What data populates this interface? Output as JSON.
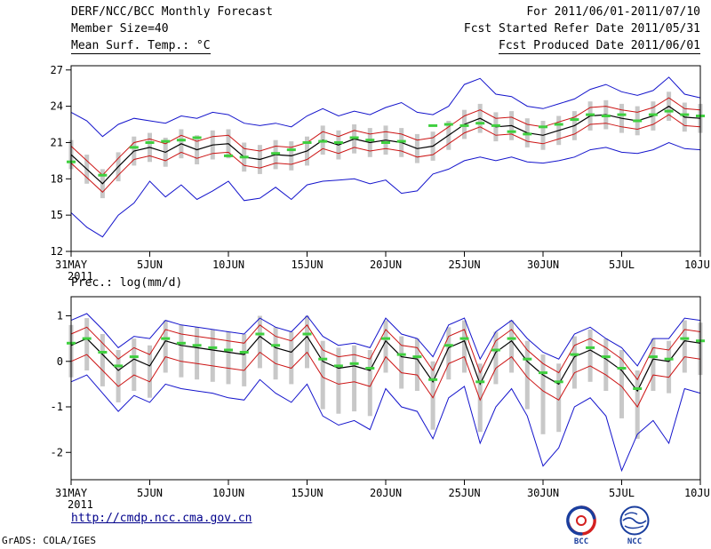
{
  "header": {
    "left": [
      "DERF/NCC/BCC Monthly Forecast",
      "Member Size=40",
      "Mean Surf. Temp.: °C"
    ],
    "right": [
      "For 2011/06/01-2011/07/10",
      "Fcst Started Refer Date 2011/05/31",
      "Fcst Produced Date 2011/06/01"
    ]
  },
  "footer": {
    "url": "http://cmdp.ncc.cma.gov.cn",
    "credit": "GrADS: COLA/IGES",
    "logos": [
      {
        "label": "BCC"
      },
      {
        "label": "NCC"
      }
    ]
  },
  "colors": {
    "extreme_line": "#1414cc",
    "quartile_line": "#cc1414",
    "mean_line": "#000000",
    "obs_dash": "#3fcf3f",
    "spread_bar": "#c8c8c8",
    "frame": "#000000",
    "url_text": "#00008b"
  },
  "chart_data": [
    {
      "type": "line",
      "title": "Mean Surf. Temp.: °C",
      "ylabel": "",
      "xlabel": "",
      "year_label": "2011",
      "n_days": 41,
      "x_tick_days": [
        0,
        5,
        10,
        15,
        20,
        25,
        30,
        35,
        40
      ],
      "x_tick_labels": [
        "31MAY",
        "5JUN",
        "10JUN",
        "15JUN",
        "20JUN",
        "25JUN",
        "30JUN",
        "5JUL",
        "10JUL"
      ],
      "ylim": [
        12,
        27.35
      ],
      "y_ticks": [
        12,
        15,
        18,
        21,
        24,
        27
      ],
      "grid": false,
      "legend": "none",
      "series": [
        {
          "name": "ensemble-max",
          "color": "#1414cc",
          "width": 1,
          "values": [
            23.5,
            22.8,
            21.5,
            22.5,
            23.0,
            22.8,
            22.6,
            23.2,
            23.0,
            23.5,
            23.3,
            22.6,
            22.4,
            22.6,
            22.3,
            23.2,
            23.8,
            23.2,
            23.6,
            23.3,
            23.9,
            24.3,
            23.5,
            23.3,
            24.0,
            25.8,
            26.3,
            25.0,
            24.8,
            24.0,
            23.8,
            24.2,
            24.6,
            25.4,
            25.8,
            25.2,
            24.9,
            25.3,
            26.4,
            25.0,
            24.7
          ]
        },
        {
          "name": "upper-quartile",
          "color": "#cc1414",
          "width": 1,
          "values": [
            20.7,
            19.5,
            18.3,
            19.7,
            21.0,
            21.3,
            20.9,
            21.6,
            21.1,
            21.5,
            21.6,
            20.5,
            20.3,
            20.7,
            20.6,
            21.0,
            21.9,
            21.5,
            22.0,
            21.7,
            21.9,
            21.7,
            21.2,
            21.4,
            22.3,
            23.2,
            23.7,
            23.0,
            23.1,
            22.5,
            22.3,
            22.7,
            23.1,
            23.9,
            24.0,
            23.7,
            23.5,
            23.9,
            24.7,
            23.8,
            23.7
          ]
        },
        {
          "name": "ensemble-mean",
          "color": "#000000",
          "width": 1.2,
          "values": [
            20.0,
            18.8,
            17.6,
            19.0,
            20.3,
            20.6,
            20.2,
            20.9,
            20.4,
            20.8,
            20.9,
            19.8,
            19.6,
            20.0,
            19.9,
            20.3,
            21.2,
            20.8,
            21.3,
            21.0,
            21.2,
            21.0,
            20.5,
            20.7,
            21.6,
            22.5,
            23.0,
            22.3,
            22.4,
            21.8,
            21.6,
            22.0,
            22.4,
            23.2,
            23.3,
            23.0,
            22.8,
            23.2,
            24.0,
            23.1,
            23.0
          ]
        },
        {
          "name": "lower-quartile",
          "color": "#cc1414",
          "width": 1,
          "values": [
            19.3,
            18.1,
            16.9,
            18.3,
            19.6,
            19.9,
            19.5,
            20.2,
            19.7,
            20.1,
            20.2,
            19.1,
            18.9,
            19.3,
            19.2,
            19.6,
            20.5,
            20.1,
            20.6,
            20.3,
            20.5,
            20.3,
            19.8,
            20.0,
            20.9,
            21.8,
            22.3,
            21.6,
            21.7,
            21.1,
            20.9,
            21.3,
            21.7,
            22.5,
            22.6,
            22.3,
            22.1,
            22.5,
            23.3,
            22.4,
            22.3
          ]
        },
        {
          "name": "ensemble-min",
          "color": "#1414cc",
          "width": 1,
          "values": [
            15.2,
            14.0,
            13.2,
            15.0,
            16.0,
            17.8,
            16.5,
            17.5,
            16.3,
            17.0,
            17.8,
            16.2,
            16.4,
            17.3,
            16.3,
            17.5,
            17.8,
            17.9,
            18.0,
            17.6,
            17.9,
            16.8,
            17.0,
            18.4,
            18.8,
            19.5,
            19.8,
            19.5,
            19.8,
            19.4,
            19.3,
            19.5,
            19.8,
            20.4,
            20.6,
            20.2,
            20.1,
            20.4,
            21.0,
            20.5,
            20.4
          ]
        }
      ],
      "bars": {
        "name": "ensemble-spread",
        "color": "#c8c8c8",
        "high": [
          21.2,
          20.0,
          18.8,
          20.2,
          21.5,
          21.8,
          21.4,
          22.1,
          21.6,
          22.0,
          22.1,
          21.0,
          20.8,
          21.2,
          21.1,
          21.5,
          22.4,
          22.0,
          22.5,
          22.2,
          22.4,
          22.2,
          21.7,
          21.9,
          22.8,
          23.7,
          24.2,
          23.5,
          23.6,
          23.0,
          22.8,
          23.2,
          23.6,
          24.4,
          24.5,
          24.2,
          24.0,
          24.4,
          25.2,
          24.3,
          24.2
        ],
        "low": [
          18.8,
          17.6,
          16.4,
          17.8,
          19.1,
          19.4,
          19.0,
          19.7,
          19.2,
          19.6,
          19.7,
          18.6,
          18.4,
          18.8,
          18.7,
          19.1,
          20.0,
          19.6,
          20.1,
          19.8,
          20.0,
          19.8,
          19.3,
          19.5,
          20.4,
          21.3,
          21.8,
          21.1,
          21.2,
          20.6,
          20.4,
          20.8,
          21.2,
          22.0,
          22.1,
          21.8,
          21.6,
          22.0,
          22.8,
          21.9,
          21.8
        ]
      },
      "dashes": {
        "name": "observation-dashes",
        "color": "#3fcf3f",
        "values": [
          19.4,
          null,
          18.3,
          null,
          20.6,
          21.0,
          21.1,
          21.2,
          21.4,
          null,
          19.9,
          19.8,
          null,
          20.1,
          20.4,
          21.0,
          21.1,
          21.0,
          21.4,
          21.2,
          21.0,
          21.1,
          null,
          22.4,
          22.5,
          22.4,
          22.6,
          22.4,
          21.9,
          21.7,
          22.3,
          22.5,
          22.9,
          23.3,
          23.2,
          23.3,
          22.8,
          23.3,
          23.6,
          23.3,
          23.2
        ]
      }
    },
    {
      "type": "line",
      "title": "Prec.: log(mm/d)",
      "ylabel": "",
      "xlabel": "",
      "year_label": "2011",
      "n_days": 41,
      "x_tick_days": [
        0,
        5,
        10,
        15,
        20,
        25,
        30,
        35,
        40
      ],
      "x_tick_labels": [
        "31MAY",
        "5JUN",
        "10JUN",
        "15JUN",
        "20JUN",
        "25JUN",
        "30JUN",
        "5JUL",
        "10JUL"
      ],
      "ylim": [
        -2.6,
        1.42
      ],
      "y_ticks": [
        1,
        0,
        -1,
        -2
      ],
      "grid": false,
      "legend": "none",
      "series": [
        {
          "name": "ensemble-max",
          "color": "#1414cc",
          "width": 1,
          "values": [
            0.9,
            1.05,
            0.7,
            0.3,
            0.55,
            0.5,
            0.9,
            0.8,
            0.75,
            0.7,
            0.65,
            0.6,
            0.95,
            0.75,
            0.65,
            1.0,
            0.55,
            0.35,
            0.4,
            0.3,
            0.95,
            0.6,
            0.5,
            0.1,
            0.8,
            0.95,
            0.05,
            0.65,
            0.9,
            0.5,
            0.2,
            0.05,
            0.6,
            0.75,
            0.5,
            0.3,
            -0.1,
            0.5,
            0.5,
            0.95,
            0.9
          ]
        },
        {
          "name": "upper-quartile",
          "color": "#cc1414",
          "width": 1,
          "values": [
            0.6,
            0.75,
            0.4,
            0.05,
            0.3,
            0.15,
            0.7,
            0.6,
            0.55,
            0.5,
            0.45,
            0.4,
            0.8,
            0.55,
            0.45,
            0.8,
            0.25,
            0.1,
            0.15,
            0.05,
            0.7,
            0.35,
            0.3,
            -0.2,
            0.55,
            0.7,
            -0.25,
            0.45,
            0.7,
            0.25,
            -0.05,
            -0.25,
            0.35,
            0.5,
            0.3,
            0.05,
            -0.4,
            0.3,
            0.25,
            0.7,
            0.65
          ]
        },
        {
          "name": "ensemble-mean",
          "color": "#000000",
          "width": 1.2,
          "values": [
            0.35,
            0.5,
            0.15,
            -0.2,
            0.05,
            -0.1,
            0.45,
            0.35,
            0.3,
            0.25,
            0.2,
            0.15,
            0.55,
            0.3,
            0.2,
            0.55,
            0.0,
            -0.15,
            -0.1,
            -0.2,
            0.45,
            0.1,
            0.05,
            -0.45,
            0.3,
            0.45,
            -0.5,
            0.2,
            0.45,
            0.0,
            -0.3,
            -0.5,
            0.1,
            0.25,
            0.05,
            -0.2,
            -0.65,
            0.05,
            0.0,
            0.45,
            0.4
          ]
        },
        {
          "name": "lower-quartile",
          "color": "#cc1414",
          "width": 1,
          "values": [
            0.0,
            0.15,
            -0.2,
            -0.55,
            -0.3,
            -0.45,
            0.1,
            0.0,
            -0.05,
            -0.1,
            -0.15,
            -0.2,
            0.2,
            -0.05,
            -0.15,
            0.2,
            -0.35,
            -0.5,
            -0.45,
            -0.55,
            0.1,
            -0.25,
            -0.3,
            -0.8,
            -0.05,
            0.1,
            -0.85,
            -0.15,
            0.1,
            -0.35,
            -0.65,
            -0.85,
            -0.25,
            -0.1,
            -0.3,
            -0.55,
            -1.0,
            -0.3,
            -0.35,
            0.1,
            0.05
          ]
        },
        {
          "name": "ensemble-min",
          "color": "#1414cc",
          "width": 1,
          "values": [
            -0.45,
            -0.3,
            -0.7,
            -1.1,
            -0.75,
            -0.9,
            -0.5,
            -0.6,
            -0.65,
            -0.7,
            -0.8,
            -0.85,
            -0.4,
            -0.7,
            -0.9,
            -0.5,
            -1.2,
            -1.4,
            -1.3,
            -1.5,
            -0.6,
            -1.0,
            -1.1,
            -1.7,
            -0.8,
            -0.55,
            -1.8,
            -1.0,
            -0.6,
            -1.2,
            -2.3,
            -1.9,
            -1.0,
            -0.8,
            -1.2,
            -2.4,
            -1.6,
            -1.3,
            -1.8,
            -0.6,
            -0.7
          ]
        }
      ],
      "bars": {
        "name": "ensemble-spread",
        "color": "#c8c8c8",
        "high": [
          0.8,
          0.95,
          0.6,
          0.25,
          0.5,
          0.35,
          0.9,
          0.8,
          0.75,
          0.7,
          0.65,
          0.6,
          1.0,
          0.75,
          0.65,
          1.0,
          0.45,
          0.3,
          0.35,
          0.25,
          0.9,
          0.55,
          0.5,
          0.0,
          0.75,
          0.9,
          -0.05,
          0.65,
          0.9,
          0.45,
          0.15,
          -0.05,
          0.55,
          0.7,
          0.5,
          0.25,
          -0.2,
          0.5,
          0.45,
          0.9,
          0.85
        ],
        "low": [
          -0.35,
          -0.2,
          -0.55,
          -0.9,
          -0.65,
          -0.8,
          -0.25,
          -0.35,
          -0.4,
          -0.45,
          -0.5,
          -0.55,
          -0.15,
          -0.4,
          -0.5,
          -0.15,
          -1.05,
          -1.15,
          -1.1,
          -1.2,
          -0.25,
          -0.6,
          -0.65,
          -1.5,
          -0.4,
          -0.25,
          -1.55,
          -0.5,
          -0.25,
          -1.05,
          -1.6,
          -1.55,
          -0.6,
          -0.45,
          -0.65,
          -1.25,
          -1.7,
          -0.65,
          -0.7,
          -0.25,
          -0.3
        ]
      },
      "dashes": {
        "name": "observation-dashes",
        "color": "#3fcf3f",
        "values": [
          0.4,
          0.5,
          0.2,
          -0.1,
          0.1,
          null,
          0.5,
          0.4,
          0.35,
          0.3,
          0.25,
          0.2,
          0.6,
          0.35,
          null,
          0.6,
          0.05,
          -0.1,
          -0.05,
          -0.15,
          0.5,
          0.15,
          0.1,
          -0.4,
          0.35,
          0.5,
          -0.45,
          0.25,
          0.5,
          0.05,
          -0.25,
          -0.45,
          0.15,
          0.3,
          0.1,
          -0.15,
          -0.6,
          0.1,
          0.05,
          0.5,
          0.45
        ]
      }
    }
  ]
}
